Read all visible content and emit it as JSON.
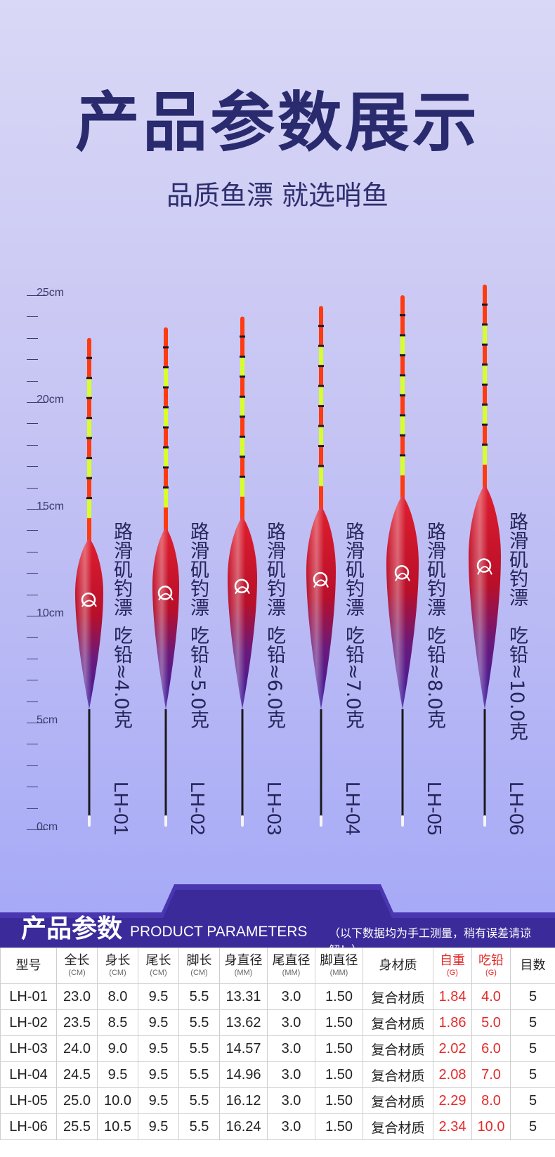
{
  "header": {
    "title": "产品参数展示",
    "subtitle": "品质鱼漂 就选哨鱼"
  },
  "ruler": {
    "labels": [
      "25cm",
      "20cm",
      "15cm",
      "10cm",
      "5cm",
      "0cm"
    ]
  },
  "floats": [
    {
      "name": "路滑矶钓漂",
      "lead": "吃铅≈4.0克",
      "model": "LH-01",
      "length_cm": 23.0,
      "body_cm": 8.0
    },
    {
      "name": "路滑矶钓漂",
      "lead": "吃铅≈5.0克",
      "model": "LH-02",
      "length_cm": 23.5,
      "body_cm": 8.5
    },
    {
      "name": "路滑矶钓漂",
      "lead": "吃铅≈6.0克",
      "model": "LH-03",
      "length_cm": 24.0,
      "body_cm": 9.0
    },
    {
      "name": "路滑矶钓漂",
      "lead": "吃铅≈7.0克",
      "model": "LH-04",
      "length_cm": 24.5,
      "body_cm": 9.5
    },
    {
      "name": "路滑矶钓漂",
      "lead": "吃铅≈8.0克",
      "model": "LH-05",
      "length_cm": 25.0,
      "body_cm": 10.0
    },
    {
      "name": "路滑矶钓漂",
      "lead": "吃铅≈10.0克",
      "model": "LH-06",
      "length_cm": 25.5,
      "body_cm": 10.5
    }
  ],
  "params": {
    "title": "产品参数",
    "subtitle": "PRODUCT PARAMETERS",
    "note": "（以下数据均为手工测量，稍有误差请谅解！）",
    "headers": [
      {
        "label": "型号",
        "unit": ""
      },
      {
        "label": "全长",
        "unit": "(CM)"
      },
      {
        "label": "身长",
        "unit": "(CM)"
      },
      {
        "label": "尾长",
        "unit": "(CM)"
      },
      {
        "label": "脚长",
        "unit": "(CM)"
      },
      {
        "label": "身直径",
        "unit": "(MM)"
      },
      {
        "label": "尾直径",
        "unit": "(MM)"
      },
      {
        "label": "脚直径",
        "unit": "(MM)"
      },
      {
        "label": "身材质",
        "unit": ""
      },
      {
        "label": "自重",
        "unit": "(G)"
      },
      {
        "label": "吃铅",
        "unit": "(G)"
      },
      {
        "label": "目数",
        "unit": ""
      }
    ],
    "rows": [
      [
        "LH-01",
        "23.0",
        "8.0",
        "9.5",
        "5.5",
        "13.31",
        "3.0",
        "1.50",
        "复合材质",
        "1.84",
        "4.0",
        "5"
      ],
      [
        "LH-02",
        "23.5",
        "8.5",
        "9.5",
        "5.5",
        "13.62",
        "3.0",
        "1.50",
        "复合材质",
        "1.86",
        "5.0",
        "5"
      ],
      [
        "LH-03",
        "24.0",
        "9.0",
        "9.5",
        "5.5",
        "14.57",
        "3.0",
        "1.50",
        "复合材质",
        "2.02",
        "6.0",
        "5"
      ],
      [
        "LH-04",
        "24.5",
        "9.5",
        "9.5",
        "5.5",
        "14.96",
        "3.0",
        "1.50",
        "复合材质",
        "2.08",
        "7.0",
        "5"
      ],
      [
        "LH-05",
        "25.0",
        "10.0",
        "9.5",
        "5.5",
        "16.12",
        "3.0",
        "1.50",
        "复合材质",
        "2.29",
        "8.0",
        "5"
      ],
      [
        "LH-06",
        "25.5",
        "10.5",
        "9.5",
        "5.5",
        "16.24",
        "3.0",
        "1.50",
        "复合材质",
        "2.34",
        "10.0",
        "5"
      ]
    ]
  },
  "colors": {
    "title": "#2a2a6e",
    "banner": "#3a2a9a",
    "red_text": "#e32a2a",
    "float_top": "#ff3a10",
    "float_band": "#d8ff2a",
    "float_body_top": "#d4102a",
    "float_body_bottom": "#3a1a9a"
  }
}
